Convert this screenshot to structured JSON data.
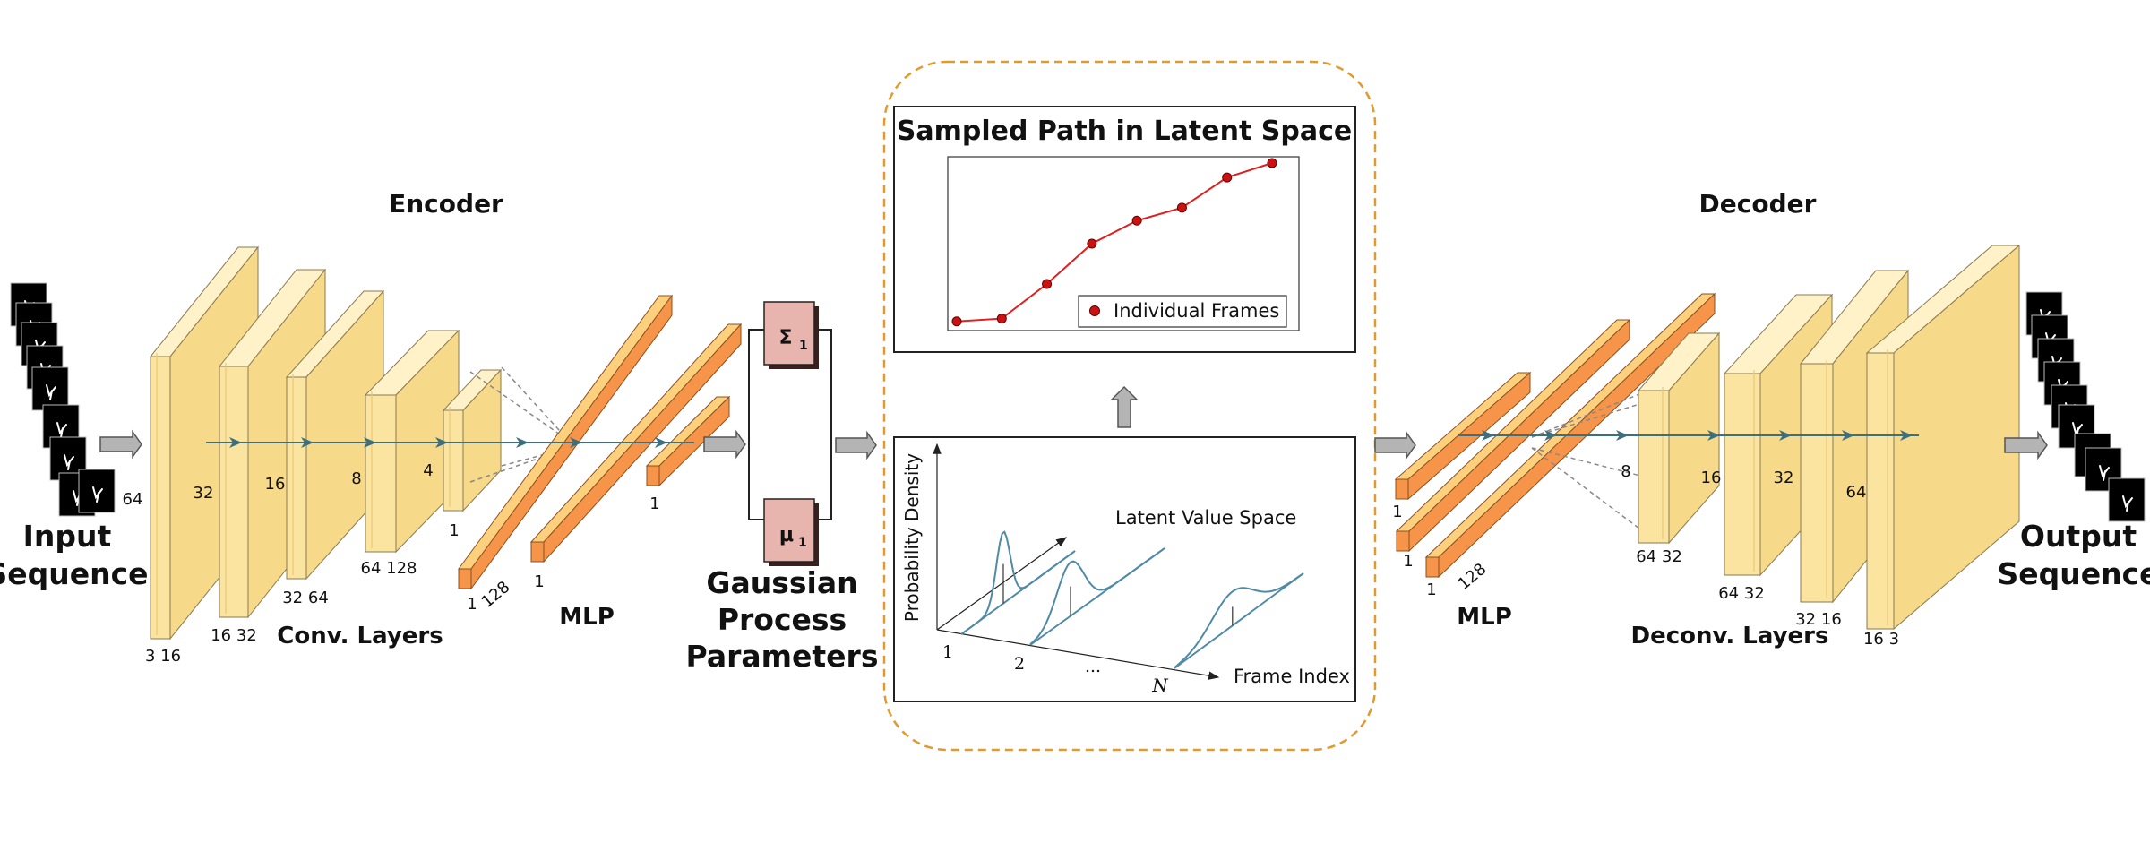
{
  "colors": {
    "conv_face": "#fbe3a0",
    "conv_top": "#fff1c8",
    "conv_side": "#f7d98a",
    "mlp_front": "#f6954a",
    "mlp_side": "#fdd07e",
    "gp_param": "#e8b4ae",
    "frame_dot": "#cc1111",
    "dashed_border": "#e09a2e",
    "curve": "#4f8aa6"
  },
  "encoder": {
    "title": "Encoder",
    "input_label_line1": "Input",
    "input_label_line2": "Sequence",
    "input_size": "64",
    "conv_label": "Conv. Layers",
    "mlp_label": "MLP",
    "spatial_sizes": [
      "32",
      "16",
      "8",
      "4"
    ],
    "channel_labels": [
      "3 16",
      "16 32",
      "32 64",
      "64 128"
    ],
    "flat_label": "1",
    "mlp_dims": [
      "1",
      "128",
      "1",
      "1"
    ]
  },
  "gp": {
    "label_line1": "Gaussian",
    "label_line2": "Process",
    "label_line3": "Parameters",
    "sigma": "Σ",
    "mu": "μ",
    "subscript": "1"
  },
  "latent_plot": {
    "title": "Sampled Path in Latent Space",
    "legend": "Individual Frames"
  },
  "density_plot": {
    "ylabel": "Probability Density",
    "value_space_label": "Latent Value Space",
    "xlabel": "Frame Index",
    "ticks": [
      "1",
      "2",
      "...",
      "N"
    ]
  },
  "decoder": {
    "title": "Decoder",
    "output_label_line1": "Output",
    "output_label_line2": "Sequence",
    "mlp_label": "MLP",
    "deconv_label": "Deconv. Layers",
    "mlp_dims": [
      "1",
      "1",
      "1",
      "128"
    ],
    "spatial_sizes": [
      "8",
      "16",
      "32",
      "64"
    ],
    "channel_labels": [
      "64 32",
      "64 32",
      "32 16",
      "16 3"
    ]
  },
  "chart_data": {
    "type": "line",
    "title": "Sampled Path in Latent Space",
    "series": [
      {
        "name": "Individual Frames",
        "x": [
          1,
          2,
          3,
          4,
          5,
          6,
          7,
          8
        ],
        "y": [
          0.2,
          0.4,
          2.8,
          5.6,
          7.2,
          8.1,
          10.2,
          11.2
        ]
      }
    ],
    "legend_position": "bottom-right",
    "grid": false
  }
}
